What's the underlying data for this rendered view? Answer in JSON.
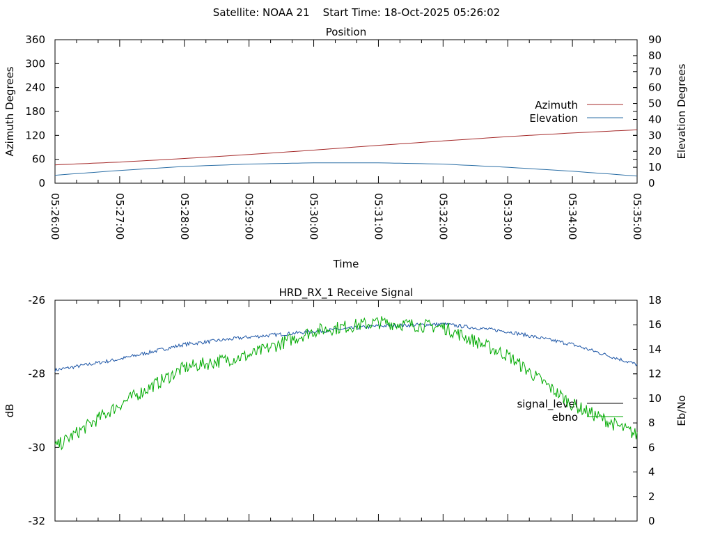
{
  "header": {
    "title": "Satellite: NOAA 21    Start Time: 18-Oct-2025 05:26:02"
  },
  "chart_data": [
    {
      "type": "line",
      "title": "Position",
      "xlabel": "Time",
      "ylabel": "Azimuth Degrees",
      "y2label": "Elevation Degrees",
      "x_ticks": [
        "05:26:00",
        "05:27:00",
        "05:28:00",
        "05:29:00",
        "05:30:00",
        "05:31:00",
        "05:32:00",
        "05:33:00",
        "05:34:00",
        "05:35:00"
      ],
      "x_range": [
        "05:26:00",
        "05:35:00"
      ],
      "ylim": [
        0,
        360
      ],
      "y_ticks": [
        0,
        60,
        120,
        180,
        240,
        300,
        360
      ],
      "y2lim": [
        0,
        90
      ],
      "y2_ticks": [
        0,
        10,
        20,
        30,
        40,
        50,
        60,
        70,
        80,
        90
      ],
      "legend_position": "right",
      "grid": false,
      "series": [
        {
          "name": "Azimuth",
          "axis": "left",
          "color": "#a52a2a",
          "x": [
            "05:26:00",
            "05:27:00",
            "05:28:00",
            "05:29:00",
            "05:30:00",
            "05:31:00",
            "05:32:00",
            "05:33:00",
            "05:34:00",
            "05:35:00"
          ],
          "values": [
            46,
            53,
            62,
            72,
            83,
            95,
            106,
            117,
            126,
            134
          ]
        },
        {
          "name": "Elevation",
          "axis": "right",
          "color": "#2a6ea5",
          "x": [
            "05:26:00",
            "05:27:00",
            "05:28:00",
            "05:29:00",
            "05:30:00",
            "05:31:00",
            "05:32:00",
            "05:33:00",
            "05:34:00",
            "05:35:00"
          ],
          "values": [
            5,
            8,
            10.5,
            12,
            12.8,
            12.8,
            12,
            10,
            7.5,
            4.5
          ]
        }
      ]
    },
    {
      "type": "line",
      "title": "HRD_RX_1 Receive Signal",
      "xlabel": "",
      "ylabel": "dB",
      "y2label": "Eb/No",
      "x_range": [
        "05:26:00",
        "05:35:00"
      ],
      "ylim": [
        -32,
        -26
      ],
      "y_ticks": [
        -32,
        -30,
        -28,
        -26
      ],
      "y2lim": [
        0,
        18
      ],
      "y2_ticks": [
        0,
        2,
        4,
        6,
        8,
        10,
        12,
        14,
        16,
        18
      ],
      "legend_position": "right",
      "grid": false,
      "series": [
        {
          "name": "signal_level",
          "axis": "left",
          "color": "#1c55a6",
          "x": [
            "05:26:00",
            "05:27:00",
            "05:28:00",
            "05:29:00",
            "05:30:00",
            "05:31:00",
            "05:32:00",
            "05:33:00",
            "05:34:00",
            "05:35:00"
          ],
          "values": [
            -27.9,
            -27.6,
            -27.2,
            -27.0,
            -26.85,
            -26.7,
            -26.65,
            -26.85,
            -27.2,
            -27.75
          ]
        },
        {
          "name": "ebno",
          "axis": "right",
          "color": "#00aa00",
          "x": [
            "05:26:00",
            "05:27:00",
            "05:28:00",
            "05:29:00",
            "05:30:00",
            "05:31:00",
            "05:32:00",
            "05:33:00",
            "05:34:00",
            "05:35:00"
          ],
          "values": [
            6,
            9.5,
            12.5,
            13.5,
            15.5,
            16.2,
            15.8,
            13.5,
            9.5,
            7
          ]
        }
      ]
    }
  ]
}
